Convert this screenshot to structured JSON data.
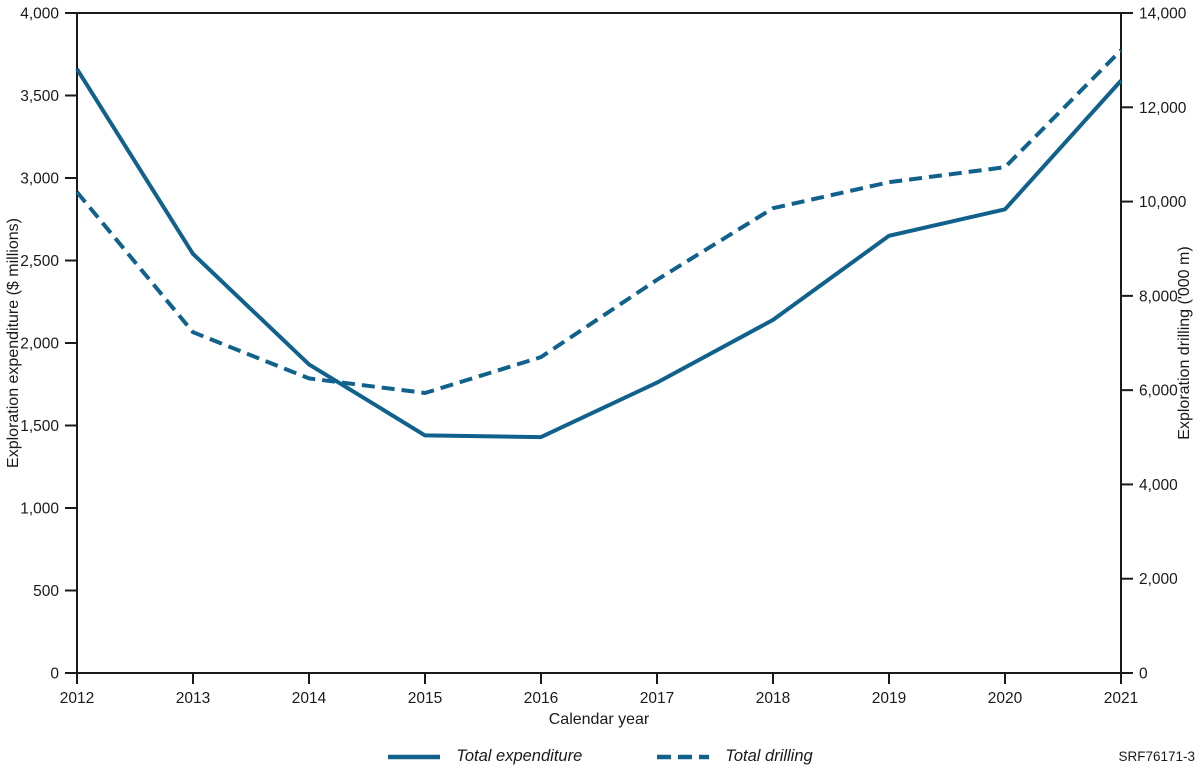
{
  "figure": {
    "id_code": "SRF76171-3",
    "accent_color": "#10618c",
    "axis_color": "#1a1a1a",
    "background": "#ffffff"
  },
  "chart_data": {
    "type": "line",
    "title": "",
    "xlabel": "Calendar year",
    "x": [
      "2012",
      "2013",
      "2014",
      "2015",
      "2016",
      "2017",
      "2018",
      "2019",
      "2020",
      "2021"
    ],
    "series": [
      {
        "name": "Total expenditure",
        "axis": "left",
        "style": "solid",
        "color": "#10618c",
        "values": [
          3660,
          2540,
          1870,
          1440,
          1430,
          1760,
          2140,
          2650,
          2810,
          3590
        ]
      },
      {
        "name": "Total drilling",
        "axis": "right",
        "style": "dashed",
        "color": "#10618c",
        "values": [
          10200,
          7230,
          6250,
          5940,
          6700,
          8340,
          9860,
          10410,
          10730,
          13210
        ]
      }
    ],
    "left_axis": {
      "label": "Exploration expenditure ($ millions)",
      "min": 0,
      "max": 4000,
      "tick_step": 500,
      "tick_labels": [
        "0",
        "500",
        "1,000",
        "1,500",
        "2,000",
        "2,500",
        "3,000",
        "3,500",
        "4,000"
      ]
    },
    "right_axis": {
      "label": "Exploration drilling ('000 m)",
      "min": 0,
      "max": 14000,
      "tick_step": 2000,
      "tick_labels": [
        "0",
        "2,000",
        "4,000",
        "6,000",
        "8,000",
        "10,000",
        "12,000",
        "14,000"
      ]
    },
    "legend_position": "bottom",
    "grid": false
  }
}
